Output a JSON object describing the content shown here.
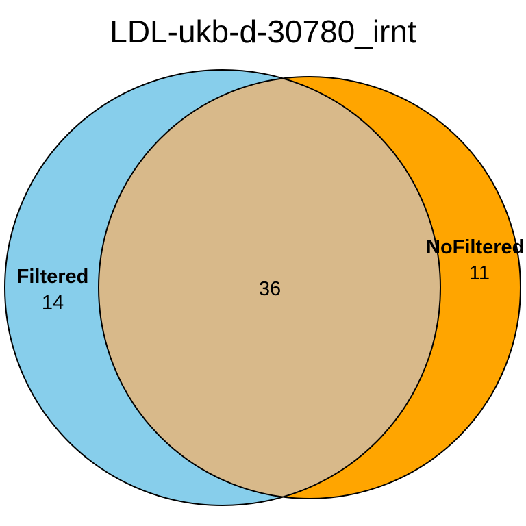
{
  "title": "LDL-ukb-d-30780_irnt",
  "colors": {
    "set_a": "#87CEEB",
    "set_b": "#FFA500",
    "overlap": "#D8B98A",
    "outline": "#000000",
    "background": "#FFFFFF"
  },
  "sets": {
    "a": {
      "name": "Filtered",
      "only_count": "14"
    },
    "b": {
      "name": "NoFiltered",
      "only_count": "11"
    },
    "intersection_count": "36"
  }
}
